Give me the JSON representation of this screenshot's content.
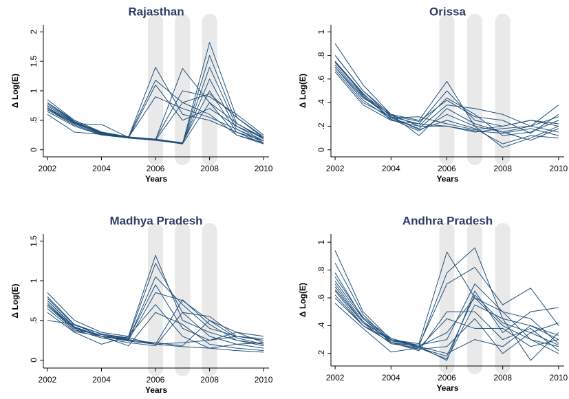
{
  "chart_data": [
    {
      "type": "line",
      "title": "Rajasthan",
      "xlabel": "Years",
      "ylabel": "Δ Log(E)",
      "color": "#1f4e79",
      "x": [
        2002,
        2003,
        2004,
        2005,
        2006,
        2007,
        2008,
        2009,
        2010
      ],
      "xlim": [
        2001.85,
        2010.2
      ],
      "ylim": [
        -0.12,
        2.12
      ],
      "xticks": [
        2002,
        2004,
        2006,
        2008,
        2010
      ],
      "yticks": [
        0,
        {
          "value": 0.5,
          "label": ".5"
        },
        1,
        {
          "value": 1.5,
          "label": "1.5"
        },
        2
      ],
      "shaded_x": [
        2006,
        2007,
        2008
      ],
      "series": [
        {
          "values": [
            0.85,
            0.5,
            0.3,
            0.22,
            0.18,
            0.1,
            1.82,
            0.55,
            0.2
          ]
        },
        {
          "values": [
            0.8,
            0.48,
            0.28,
            0.21,
            0.17,
            0.11,
            1.6,
            0.45,
            0.18
          ]
        },
        {
          "values": [
            0.75,
            0.45,
            0.27,
            0.2,
            0.17,
            0.1,
            1.4,
            0.4,
            0.15
          ]
        },
        {
          "values": [
            0.7,
            0.42,
            0.26,
            0.2,
            0.16,
            0.1,
            1.2,
            0.35,
            0.12
          ]
        },
        {
          "values": [
            0.72,
            0.44,
            0.28,
            0.21,
            0.18,
            0.12,
            1.0,
            0.3,
            0.1
          ]
        },
        {
          "values": [
            0.65,
            0.4,
            0.25,
            0.2,
            0.17,
            0.1,
            0.8,
            0.25,
            0.1
          ]
        },
        {
          "values": [
            0.78,
            0.47,
            0.3,
            0.21,
            1.4,
            0.6,
            0.5,
            0.3,
            0.15
          ]
        },
        {
          "values": [
            0.8,
            0.5,
            0.3,
            0.22,
            1.18,
            0.8,
            0.6,
            0.25,
            0.12
          ]
        },
        {
          "values": [
            0.7,
            0.45,
            0.27,
            0.2,
            1.1,
            0.5,
            0.7,
            0.4,
            0.2
          ]
        },
        {
          "values": [
            0.75,
            0.46,
            0.29,
            0.21,
            0.9,
            0.7,
            0.55,
            0.35,
            0.15
          ]
        },
        {
          "values": [
            0.68,
            0.42,
            0.26,
            0.2,
            0.17,
            1.38,
            0.8,
            0.45,
            0.2
          ]
        },
        {
          "values": [
            0.72,
            0.44,
            0.43,
            0.21,
            0.18,
            1.0,
            0.9,
            0.6,
            0.25
          ]
        },
        {
          "values": [
            0.6,
            0.3,
            0.26,
            0.2,
            0.16,
            0.8,
            0.95,
            0.55,
            0.22
          ]
        }
      ]
    },
    {
      "type": "line",
      "title": "Orissa",
      "xlabel": "Years",
      "ylabel": "Δ Log(E)",
      "color": "#1f4e79",
      "x": [
        2002,
        2003,
        2004,
        2005,
        2006,
        2007,
        2008,
        2009,
        2010
      ],
      "xlim": [
        2001.85,
        2010.2
      ],
      "ylim": [
        -0.06,
        1.06
      ],
      "xticks": [
        2002,
        2004,
        2006,
        2008,
        2010
      ],
      "yticks": [
        0,
        {
          "value": 0.2,
          "label": ".2"
        },
        {
          "value": 0.4,
          "label": ".4"
        },
        {
          "value": 0.6,
          "label": ".6"
        },
        {
          "value": 0.8,
          "label": ".8"
        },
        1
      ],
      "shaded_x": [
        2006,
        2007,
        2008
      ],
      "series": [
        {
          "values": [
            0.9,
            0.55,
            0.3,
            0.25,
            0.58,
            0.2,
            0.15,
            0.2,
            0.38
          ]
        },
        {
          "values": [
            0.8,
            0.5,
            0.28,
            0.22,
            0.5,
            0.25,
            0.2,
            0.25,
            0.2
          ]
        },
        {
          "values": [
            0.75,
            0.48,
            0.25,
            0.2,
            0.44,
            0.3,
            0.12,
            0.15,
            0.25
          ]
        },
        {
          "values": [
            0.72,
            0.45,
            0.27,
            0.18,
            0.38,
            0.35,
            0.3,
            0.2,
            0.15
          ]
        },
        {
          "values": [
            0.7,
            0.42,
            0.26,
            0.16,
            0.3,
            0.2,
            0.02,
            0.1,
            0.2
          ]
        },
        {
          "values": [
            0.68,
            0.4,
            0.28,
            0.17,
            0.25,
            0.18,
            0.05,
            0.12,
            0.1
          ]
        },
        {
          "values": [
            0.7,
            0.44,
            0.3,
            0.2,
            0.2,
            0.15,
            0.18,
            0.2,
            0.28
          ]
        },
        {
          "values": [
            0.75,
            0.46,
            0.27,
            0.28,
            0.22,
            0.17,
            0.2,
            0.25,
            0.22
          ]
        },
        {
          "values": [
            0.8,
            0.5,
            0.3,
            0.12,
            0.35,
            0.22,
            0.15,
            0.08,
            0.18
          ]
        },
        {
          "values": [
            0.66,
            0.38,
            0.25,
            0.22,
            0.2,
            0.16,
            0.14,
            0.18,
            0.12
          ]
        },
        {
          "values": [
            0.74,
            0.47,
            0.29,
            0.24,
            0.42,
            0.28,
            0.25,
            0.14,
            0.3
          ]
        }
      ]
    },
    {
      "type": "line",
      "title": "Madhya Pradesh",
      "xlabel": "Years",
      "ylabel": "Δ Log(E)",
      "color": "#1f4e79",
      "x": [
        2002,
        2003,
        2004,
        2005,
        2006,
        2007,
        2008,
        2009,
        2010
      ],
      "xlim": [
        2001.85,
        2010.2
      ],
      "ylim": [
        -0.1,
        1.59
      ],
      "xticks": [
        2002,
        2004,
        2006,
        2008,
        2010
      ],
      "yticks": [
        0,
        {
          "value": 0.5,
          "label": ".5"
        },
        1,
        {
          "value": 1.5,
          "label": "1.5"
        }
      ],
      "shaded_x": [
        2006,
        2007,
        2008
      ],
      "series": [
        {
          "values": [
            0.85,
            0.5,
            0.35,
            0.3,
            1.32,
            0.5,
            0.35,
            0.25,
            0.2
          ]
        },
        {
          "values": [
            0.8,
            0.45,
            0.33,
            0.28,
            1.22,
            0.6,
            0.3,
            0.2,
            0.15
          ]
        },
        {
          "values": [
            0.75,
            0.42,
            0.3,
            0.26,
            1.05,
            0.7,
            0.4,
            0.3,
            0.25
          ]
        },
        {
          "values": [
            0.72,
            0.4,
            0.3,
            0.25,
            0.85,
            0.75,
            0.5,
            0.35,
            0.22
          ]
        },
        {
          "values": [
            0.7,
            0.4,
            0.3,
            0.24,
            0.2,
            0.76,
            0.45,
            0.25,
            0.18
          ]
        },
        {
          "values": [
            0.68,
            0.38,
            0.28,
            0.22,
            0.18,
            0.6,
            0.55,
            0.3,
            0.25
          ]
        },
        {
          "values": [
            0.65,
            0.36,
            0.3,
            0.25,
            0.22,
            0.18,
            0.5,
            0.28,
            0.2
          ]
        },
        {
          "values": [
            0.7,
            0.38,
            0.32,
            0.26,
            0.2,
            0.17,
            0.15,
            0.12,
            0.1
          ]
        },
        {
          "values": [
            0.5,
            0.45,
            0.3,
            0.28,
            0.2,
            0.22,
            0.25,
            0.35,
            0.3
          ]
        },
        {
          "values": [
            0.75,
            0.41,
            0.3,
            0.18,
            0.6,
            0.45,
            0.2,
            0.15,
            0.12
          ]
        },
        {
          "values": [
            0.6,
            0.35,
            0.2,
            0.3,
            0.7,
            0.3,
            0.15,
            0.2,
            0.22
          ]
        },
        {
          "values": [
            0.78,
            0.44,
            0.33,
            0.27,
            0.95,
            0.4,
            0.25,
            0.3,
            0.27
          ]
        }
      ]
    },
    {
      "type": "line",
      "title": "Andhra Pradesh",
      "xlabel": "Years",
      "ylabel": "Δ Log(E)",
      "color": "#1f4e79",
      "x": [
        2002,
        2003,
        2004,
        2005,
        2006,
        2007,
        2008,
        2009,
        2010
      ],
      "xlim": [
        2001.85,
        2010.2
      ],
      "ylim": [
        0.11,
        1.06
      ],
      "xticks": [
        2002,
        2004,
        2006,
        2008,
        2010
      ],
      "yticks": [
        {
          "value": 0.2,
          "label": ".2"
        },
        {
          "value": 0.4,
          "label": ".4"
        },
        {
          "value": 0.6,
          "label": ".6"
        },
        {
          "value": 0.8,
          "label": ".8"
        },
        1
      ],
      "shaded_x": [
        2006,
        2007,
        2008
      ],
      "series": [
        {
          "values": [
            0.94,
            0.5,
            0.3,
            0.27,
            0.93,
            0.6,
            0.5,
            0.3,
            0.25
          ]
        },
        {
          "values": [
            0.85,
            0.48,
            0.28,
            0.25,
            0.78,
            0.96,
            0.45,
            0.4,
            0.3
          ]
        },
        {
          "values": [
            0.78,
            0.45,
            0.3,
            0.26,
            0.7,
            0.82,
            0.55,
            0.67,
            0.4
          ]
        },
        {
          "values": [
            0.72,
            0.45,
            0.28,
            0.25,
            0.15,
            0.65,
            0.35,
            0.5,
            0.53
          ]
        },
        {
          "values": [
            0.68,
            0.42,
            0.27,
            0.24,
            0.16,
            0.55,
            0.45,
            0.15,
            0.35
          ]
        },
        {
          "values": [
            0.65,
            0.4,
            0.3,
            0.25,
            0.35,
            0.6,
            0.4,
            0.3,
            0.2
          ]
        },
        {
          "values": [
            0.62,
            0.4,
            0.28,
            0.23,
            0.25,
            0.45,
            0.2,
            0.35,
            0.42
          ]
        },
        {
          "values": [
            0.56,
            0.38,
            0.21,
            0.24,
            0.45,
            0.38,
            0.38,
            0.25,
            0.3
          ]
        },
        {
          "values": [
            0.7,
            0.43,
            0.29,
            0.26,
            0.3,
            0.7,
            0.5,
            0.45,
            0.27
          ]
        },
        {
          "values": [
            0.75,
            0.46,
            0.31,
            0.25,
            0.2,
            0.3,
            0.25,
            0.4,
            0.33
          ]
        },
        {
          "values": [
            0.6,
            0.4,
            0.28,
            0.22,
            0.5,
            0.5,
            0.3,
            0.38,
            0.22
          ]
        },
        {
          "values": [
            0.66,
            0.42,
            0.3,
            0.24,
            0.18,
            0.62,
            0.42,
            0.35,
            0.26
          ]
        }
      ]
    }
  ]
}
